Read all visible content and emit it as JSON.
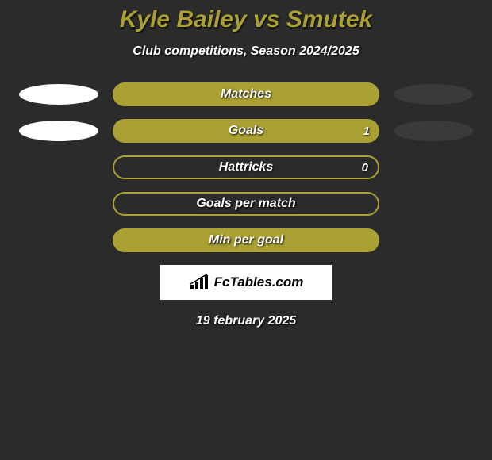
{
  "title": "Kyle Bailey vs Smutek",
  "subtitle": "Club competitions, Season 2024/2025",
  "colors": {
    "background": "#2b2b2b",
    "accent": "#aaa033",
    "oval_left": "#ffffff",
    "oval_right": "#3a3a3a",
    "text": "#ffffff"
  },
  "rows": [
    {
      "label": "Matches",
      "style": "fill",
      "show_ovals": true,
      "value": null
    },
    {
      "label": "Goals",
      "style": "fill",
      "show_ovals": true,
      "value": "1"
    },
    {
      "label": "Hattricks",
      "style": "outline",
      "show_ovals": false,
      "value": "0"
    },
    {
      "label": "Goals per match",
      "style": "outline",
      "show_ovals": false,
      "value": null
    },
    {
      "label": "Min per goal",
      "style": "fill",
      "show_ovals": false,
      "value": null
    }
  ],
  "logo_text": "FcTables.com",
  "date": "19 february 2025"
}
